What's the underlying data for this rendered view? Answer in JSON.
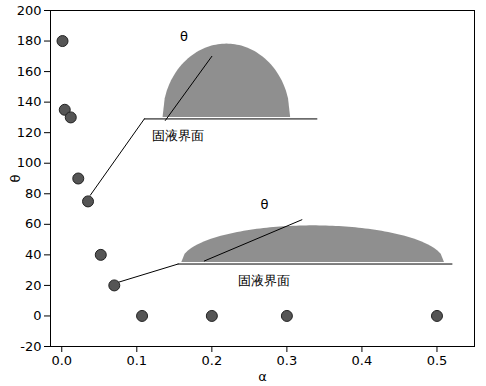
{
  "chart_data": {
    "type": "scatter",
    "x_label": "α",
    "y_label": "θ",
    "x": [
      0.001,
      0.004,
      0.012,
      0.022,
      0.035,
      0.052,
      0.07,
      0.107,
      0.2,
      0.3,
      0.5
    ],
    "values": [
      180,
      135,
      130,
      90,
      75,
      40,
      20,
      0,
      0,
      0,
      0
    ],
    "color": "#555555",
    "marker": "circle",
    "xlim": [
      -0.015,
      0.55
    ],
    "xticks": [
      {
        "value": 0,
        "label": "0.0"
      },
      {
        "value": 0.1,
        "label": "0.1"
      },
      {
        "value": 0.2,
        "label": "0.2"
      },
      {
        "value": 0.3,
        "label": "0.3"
      },
      {
        "value": 0.4,
        "label": "0.4"
      },
      {
        "value": 0.5,
        "label": "0.5"
      }
    ],
    "ylim": [
      -20,
      200
    ],
    "yticks": [
      -20,
      0,
      20,
      40,
      60,
      80,
      100,
      120,
      140,
      160,
      180,
      200
    ],
    "grid": false,
    "annotations": [
      "θ",
      "固液界面",
      "θ",
      "固液界面"
    ]
  }
}
